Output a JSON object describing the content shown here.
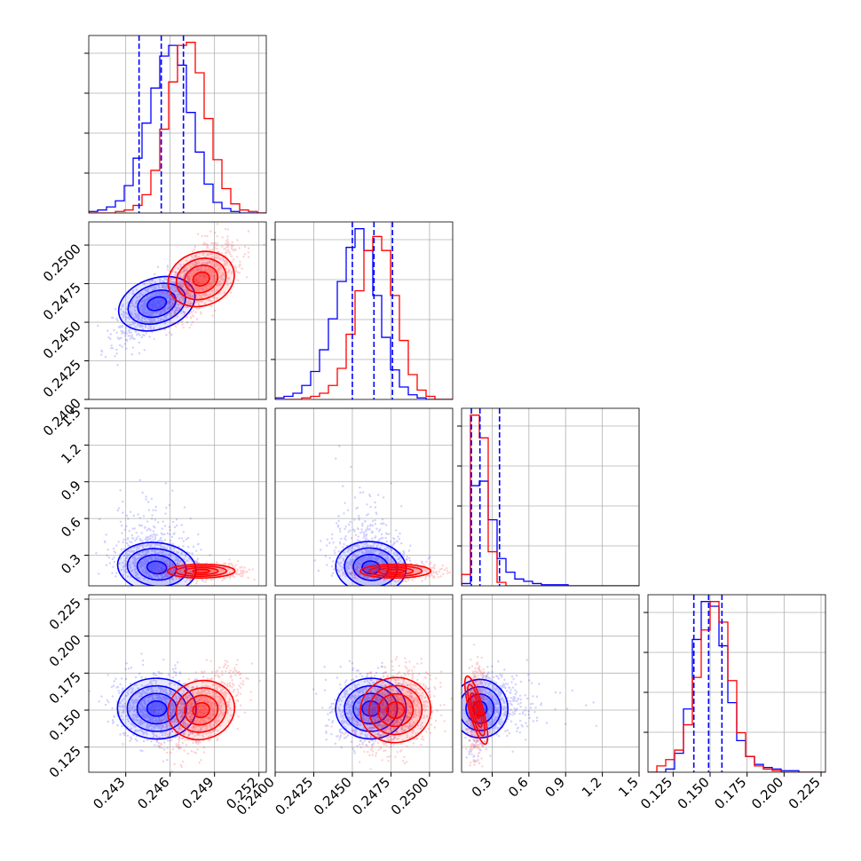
{
  "chart_data": {
    "type": "corner",
    "grid": true,
    "colors": {
      "blue": "#0000ff",
      "red": "#ff0000"
    },
    "parameters": [
      {
        "range": [
          0.2405,
          0.2525
        ],
        "ticks": [
          0.243,
          0.246,
          0.249,
          0.252
        ],
        "tick_labels": [
          "0.243",
          "0.246",
          "0.249",
          "0.252"
        ]
      },
      {
        "range": [
          0.24,
          0.2515
        ],
        "ticks": [
          0.24,
          0.2425,
          0.245,
          0.2475,
          0.25
        ],
        "tick_labels": [
          "0.2400",
          "0.2425",
          "0.2450",
          "0.2475",
          "0.2500"
        ]
      },
      {
        "range": [
          0.05,
          1.5
        ],
        "ticks": [
          0.3,
          0.6,
          0.9,
          1.2,
          1.5
        ],
        "tick_labels": [
          "0.3",
          "0.6",
          "0.9",
          "1.2",
          "1.5"
        ]
      },
      {
        "range": [
          0.108,
          0.228
        ],
        "ticks": [
          0.125,
          0.15,
          0.175,
          0.2,
          0.225
        ],
        "tick_labels": [
          "0.125",
          "0.150",
          "0.175",
          "0.200",
          "0.225"
        ]
      }
    ],
    "series": [
      {
        "color": "#0000ff",
        "quantiles": [
          [
            0.2439,
            0.2454,
            0.2469
          ],
          [
            0.245,
            0.2464,
            0.2476
          ],
          [
            0.13,
            0.2,
            0.36
          ],
          [
            0.139,
            0.149,
            0.158
          ]
        ],
        "hist": [
          [
            1,
            2,
            4,
            8,
            18,
            36,
            59,
            82,
            103,
            110,
            97,
            66,
            40,
            19,
            7,
            3,
            1,
            0,
            0,
            0
          ],
          [
            1,
            2,
            4,
            9,
            18,
            32,
            52,
            76,
            98,
            110,
            96,
            67,
            40,
            19,
            8,
            3,
            1,
            0,
            0,
            0
          ],
          [
            2,
            88,
            92,
            58,
            24,
            12,
            6,
            4,
            2,
            1,
            1,
            1,
            0,
            0,
            0,
            0,
            0,
            0,
            0,
            0
          ],
          [
            0,
            0,
            2,
            12,
            40,
            84,
            108,
            105,
            80,
            44,
            20,
            10,
            5,
            3,
            2,
            1,
            1,
            0,
            0,
            0
          ]
        ],
        "means": [
          0.2451,
          0.2462,
          0.26,
          0.151
        ],
        "sigmas": [
          0.0014,
          0.0012,
          0.12,
          0.011
        ],
        "corrs": {
          "0-1": 0.75,
          "0-2": -0.3,
          "1-2": -0.2,
          "0-3": -0.05,
          "1-3": 0.05,
          "2-3": 0.15
        }
      },
      {
        "color": "#ff0000",
        "quantiles": [
          [
            0.247,
            0.2481,
            0.2492
          ],
          [
            0.2466,
            0.2478,
            0.2489
          ],
          [
            0.13,
            0.16,
            0.2
          ],
          [
            0.14,
            0.15,
            0.16
          ]
        ],
        "hist": [
          [
            0,
            0,
            0,
            1,
            2,
            5,
            12,
            28,
            55,
            86,
            110,
            112,
            92,
            62,
            35,
            16,
            6,
            2,
            1,
            0
          ],
          [
            0,
            0,
            0,
            1,
            2,
            4,
            9,
            20,
            42,
            70,
            96,
            105,
            96,
            67,
            38,
            16,
            6,
            2,
            0,
            0
          ],
          [
            10,
            150,
            130,
            30,
            3,
            0,
            0,
            0,
            0,
            0,
            0,
            0,
            0,
            0,
            0,
            0,
            0,
            0,
            0,
            0
          ],
          [
            0,
            4,
            8,
            14,
            30,
            60,
            90,
            108,
            95,
            58,
            25,
            10,
            4,
            2,
            1,
            0,
            0,
            0,
            0,
            0
          ]
        ],
        "means": [
          0.2481,
          0.2478,
          0.17,
          0.15
        ],
        "sigmas": [
          0.0012,
          0.0012,
          0.03,
          0.013
        ],
        "corrs": {
          "0-1": 0.65,
          "0-2": 0.05,
          "1-2": 0.05,
          "0-3": 0.55,
          "1-3": 0.3,
          "2-3": 0.1
        }
      }
    ]
  }
}
